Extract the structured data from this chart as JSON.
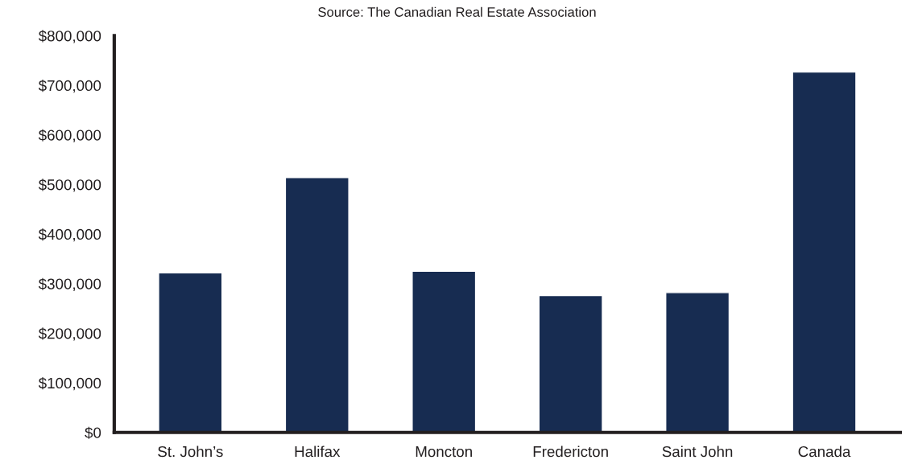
{
  "chart_data": {
    "type": "bar",
    "categories": [
      "St. John’s",
      "Halifax",
      "Moncton",
      "Fredericton",
      "Saint John",
      "Canada"
    ],
    "values": [
      322000,
      514000,
      325000,
      276000,
      282000,
      727000
    ],
    "color": "#172c51",
    "ylim": [
      0,
      800000
    ],
    "yticks": [
      {
        "value": 0,
        "label": "$0"
      },
      {
        "value": 100000,
        "label": "$100,000"
      },
      {
        "value": 200000,
        "label": "$200,000"
      },
      {
        "value": 300000,
        "label": "$300,000"
      },
      {
        "value": 400000,
        "label": "$400,000"
      },
      {
        "value": 500000,
        "label": "$500,000"
      },
      {
        "value": 600000,
        "label": "$600,000"
      },
      {
        "value": 700000,
        "label": "$700,000"
      },
      {
        "value": 800000,
        "label": "$800,000"
      }
    ],
    "grid": false,
    "annotations": [
      "Source: The Canadian Real Estate Association"
    ]
  }
}
